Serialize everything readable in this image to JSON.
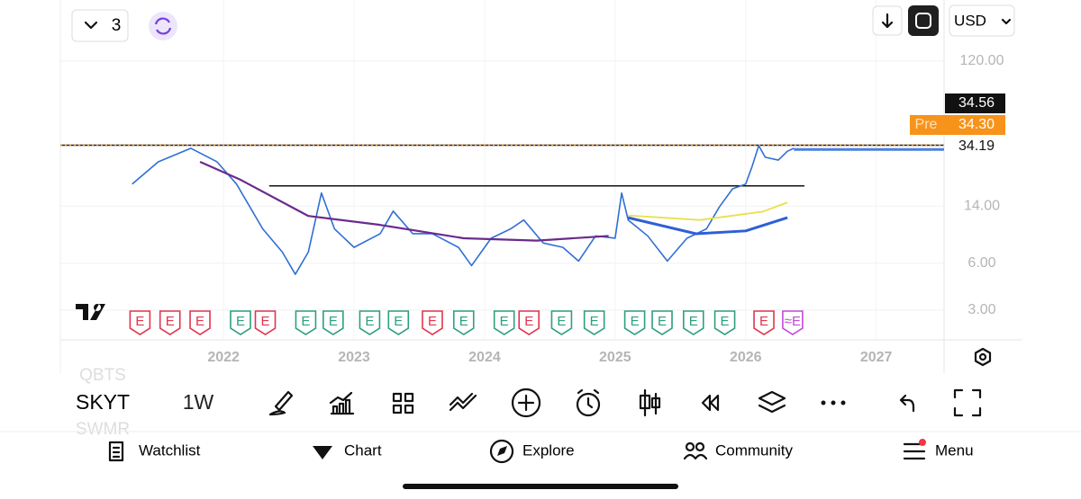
{
  "header": {
    "layout_count": "3",
    "currency": "USD"
  },
  "chart_data": {
    "type": "line",
    "log_scale": true,
    "xlim": [
      2020.75,
      2027.52
    ],
    "xticks": [
      2022,
      2023,
      2024,
      2025,
      2026,
      2027
    ],
    "ylim": [
      1.93,
      297
    ],
    "yticks": [
      {
        "value": 3,
        "label": "3.00"
      },
      {
        "value": 6,
        "label": "6.00"
      },
      {
        "value": 14,
        "label": "14.00"
      },
      {
        "value": 120,
        "label": "120.00"
      }
    ],
    "series": [
      {
        "color": "#2f6fd6",
        "width": 1.6,
        "x": [
          2021.3,
          2021.5,
          2021.75,
          2021.95,
          2022.1,
          2022.3,
          2022.45,
          2022.55,
          2022.65,
          2022.75,
          2022.85,
          2023.0,
          2023.2,
          2023.3,
          2023.45,
          2023.6,
          2023.8,
          2023.9,
          2024.05,
          2024.2,
          2024.3,
          2024.45,
          2024.6,
          2024.72,
          2024.85,
          2025.0,
          2025.05,
          2025.1,
          2025.25,
          2025.4,
          2025.55,
          2025.7,
          2025.8,
          2025.9,
          2026.0,
          2026.05,
          2026.1,
          2026.15,
          2026.25,
          2026.32,
          2026.37
        ],
        "values": [
          19.4,
          27,
          33,
          27,
          19.4,
          10,
          7.1,
          5.1,
          7.1,
          17,
          10,
          7.6,
          9.3,
          13,
          9.3,
          9.3,
          7.6,
          5.8,
          8.7,
          10,
          11.4,
          8.1,
          7.6,
          6.2,
          9,
          8.7,
          17,
          11.4,
          9,
          6.2,
          8.7,
          10,
          13.9,
          18.1,
          19.4,
          25.3,
          34.3,
          28.9,
          27.7,
          31.6,
          33
        ]
      },
      {
        "color": "#6a2a8c",
        "width": 2.2,
        "x": [
          2021.82,
          2022.13,
          2022.65,
          2023.2,
          2023.84,
          2024.4,
          2024.95
        ],
        "values": [
          27,
          20.7,
          12.1,
          10.6,
          8.7,
          8.4,
          9
        ]
      },
      {
        "color": "#e8e04a",
        "width": 1.8,
        "x": [
          2025.1,
          2025.65,
          2026.13,
          2026.32
        ],
        "values": [
          12.2,
          11.4,
          12.9,
          14.8
        ]
      },
      {
        "color": "#2d5fd8",
        "width": 3,
        "x": [
          2025.1,
          2025.62,
          2026.0,
          2026.32
        ],
        "values": [
          11.8,
          9.3,
          9.7,
          11.8
        ]
      }
    ],
    "last_price": 34.56,
    "premarket": {
      "label": "Pre",
      "value": 34.3,
      "value_label": "34.30"
    },
    "close_line": 34.19,
    "resistance": {
      "value": 18.9,
      "x": [
        2022.35,
        2026.45
      ]
    },
    "earnings": [
      {
        "x": 2021.36,
        "label": "E",
        "color": "#e0354d"
      },
      {
        "x": 2021.59,
        "label": "E",
        "color": "#e0354d"
      },
      {
        "x": 2021.82,
        "label": "E",
        "color": "#e0354d"
      },
      {
        "x": 2022.13,
        "label": "E",
        "color": "#2e9e7e"
      },
      {
        "x": 2022.32,
        "label": "E",
        "color": "#e0354d"
      },
      {
        "x": 2022.63,
        "label": "E",
        "color": "#2e9e7e"
      },
      {
        "x": 2022.84,
        "label": "E",
        "color": "#2e9e7e"
      },
      {
        "x": 2023.12,
        "label": "E",
        "color": "#2e9e7e"
      },
      {
        "x": 2023.34,
        "label": "E",
        "color": "#2e9e7e"
      },
      {
        "x": 2023.6,
        "label": "E",
        "color": "#e0354d"
      },
      {
        "x": 2023.84,
        "label": "E",
        "color": "#2e9e7e"
      },
      {
        "x": 2024.15,
        "label": "E",
        "color": "#2e9e7e"
      },
      {
        "x": 2024.34,
        "label": "E",
        "color": "#e0354d"
      },
      {
        "x": 2024.59,
        "label": "E",
        "color": "#2e9e7e"
      },
      {
        "x": 2024.84,
        "label": "E",
        "color": "#2e9e7e"
      },
      {
        "x": 2025.15,
        "label": "E",
        "color": "#2e9e7e"
      },
      {
        "x": 2025.36,
        "label": "E",
        "color": "#2e9e7e"
      },
      {
        "x": 2025.6,
        "label": "E",
        "color": "#2e9e7e"
      },
      {
        "x": 2025.84,
        "label": "E",
        "color": "#2e9e7e"
      },
      {
        "x": 2026.14,
        "label": "E",
        "color": "#e0354d"
      },
      {
        "x": 2026.36,
        "label": "≈E",
        "color": "#c04ad6"
      }
    ]
  },
  "toolbar": {
    "symbol": "SKYT",
    "interval": "1W",
    "symbol_above": "QBTS",
    "symbol_below": "SWMR"
  },
  "nav": [
    "Watchlist",
    "Chart",
    "Explore",
    "Community",
    "Menu"
  ]
}
